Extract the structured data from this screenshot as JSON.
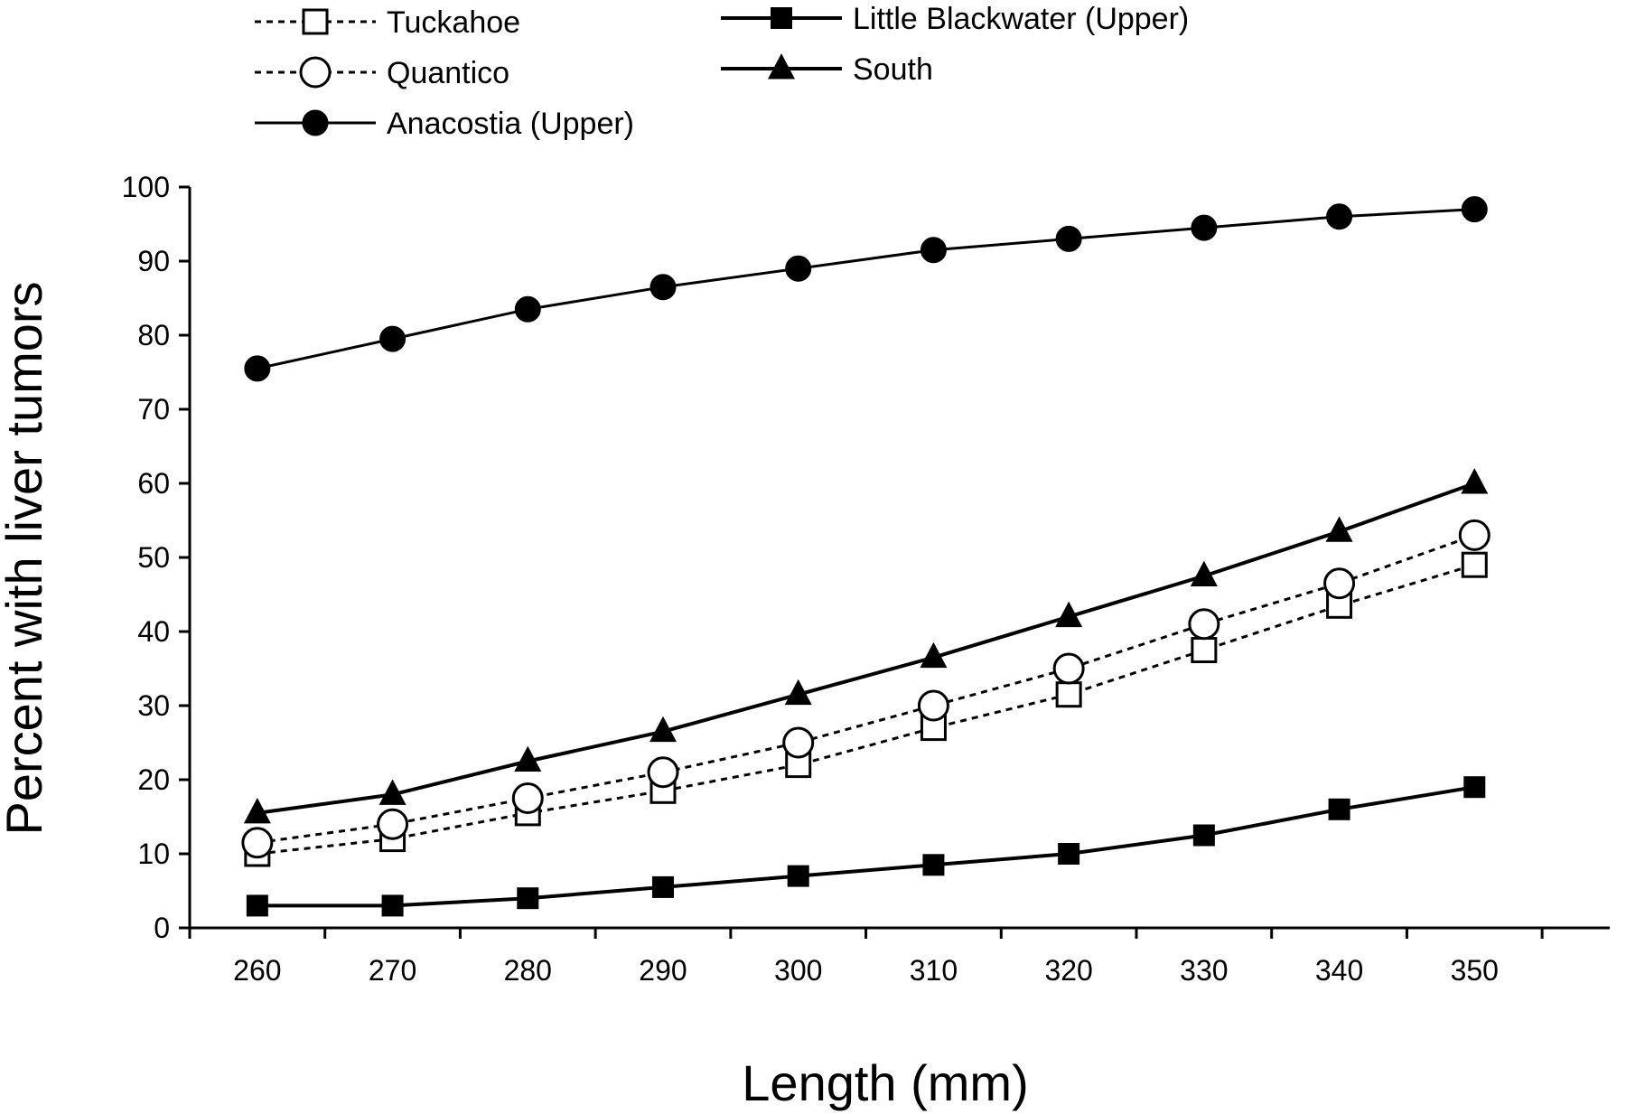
{
  "chart_data": {
    "type": "line",
    "title": "",
    "xlabel": "Length (mm)",
    "ylabel": "Percent with liver tumors",
    "x": [
      260,
      270,
      280,
      290,
      300,
      310,
      320,
      330,
      340,
      350
    ],
    "xlim": [
      255,
      360
    ],
    "ylim": [
      0,
      100
    ],
    "yticks": [
      0,
      10,
      20,
      30,
      40,
      50,
      60,
      70,
      80,
      90,
      100
    ],
    "grid": false,
    "legend_position": "top",
    "series": [
      {
        "name": "Tuckahoe",
        "marker": "square-open",
        "line": "dotted",
        "values": [
          10,
          12,
          15.5,
          18.5,
          22,
          27,
          31.5,
          37.5,
          43.5,
          49
        ]
      },
      {
        "name": "Quantico",
        "marker": "circle-open",
        "line": "dotted",
        "values": [
          11.5,
          14,
          17.5,
          21,
          25,
          30,
          35,
          41,
          46.5,
          53
        ]
      },
      {
        "name": "Anacostia (Upper)",
        "marker": "circle-filled",
        "line": "solid",
        "values": [
          75.5,
          79.5,
          83.5,
          86.5,
          89,
          91.5,
          93,
          94.5,
          96,
          97
        ]
      },
      {
        "name": "Little Blackwater (Upper)",
        "marker": "square-filled",
        "line": "solid-thick",
        "values": [
          3,
          3,
          4,
          5.5,
          7,
          8.5,
          10,
          12.5,
          16,
          19
        ]
      },
      {
        "name": "South",
        "marker": "triangle-filled",
        "line": "solid-thick",
        "values": [
          15.5,
          18,
          22.5,
          26.5,
          31.5,
          36.5,
          42,
          47.5,
          53.5,
          60
        ]
      }
    ]
  }
}
